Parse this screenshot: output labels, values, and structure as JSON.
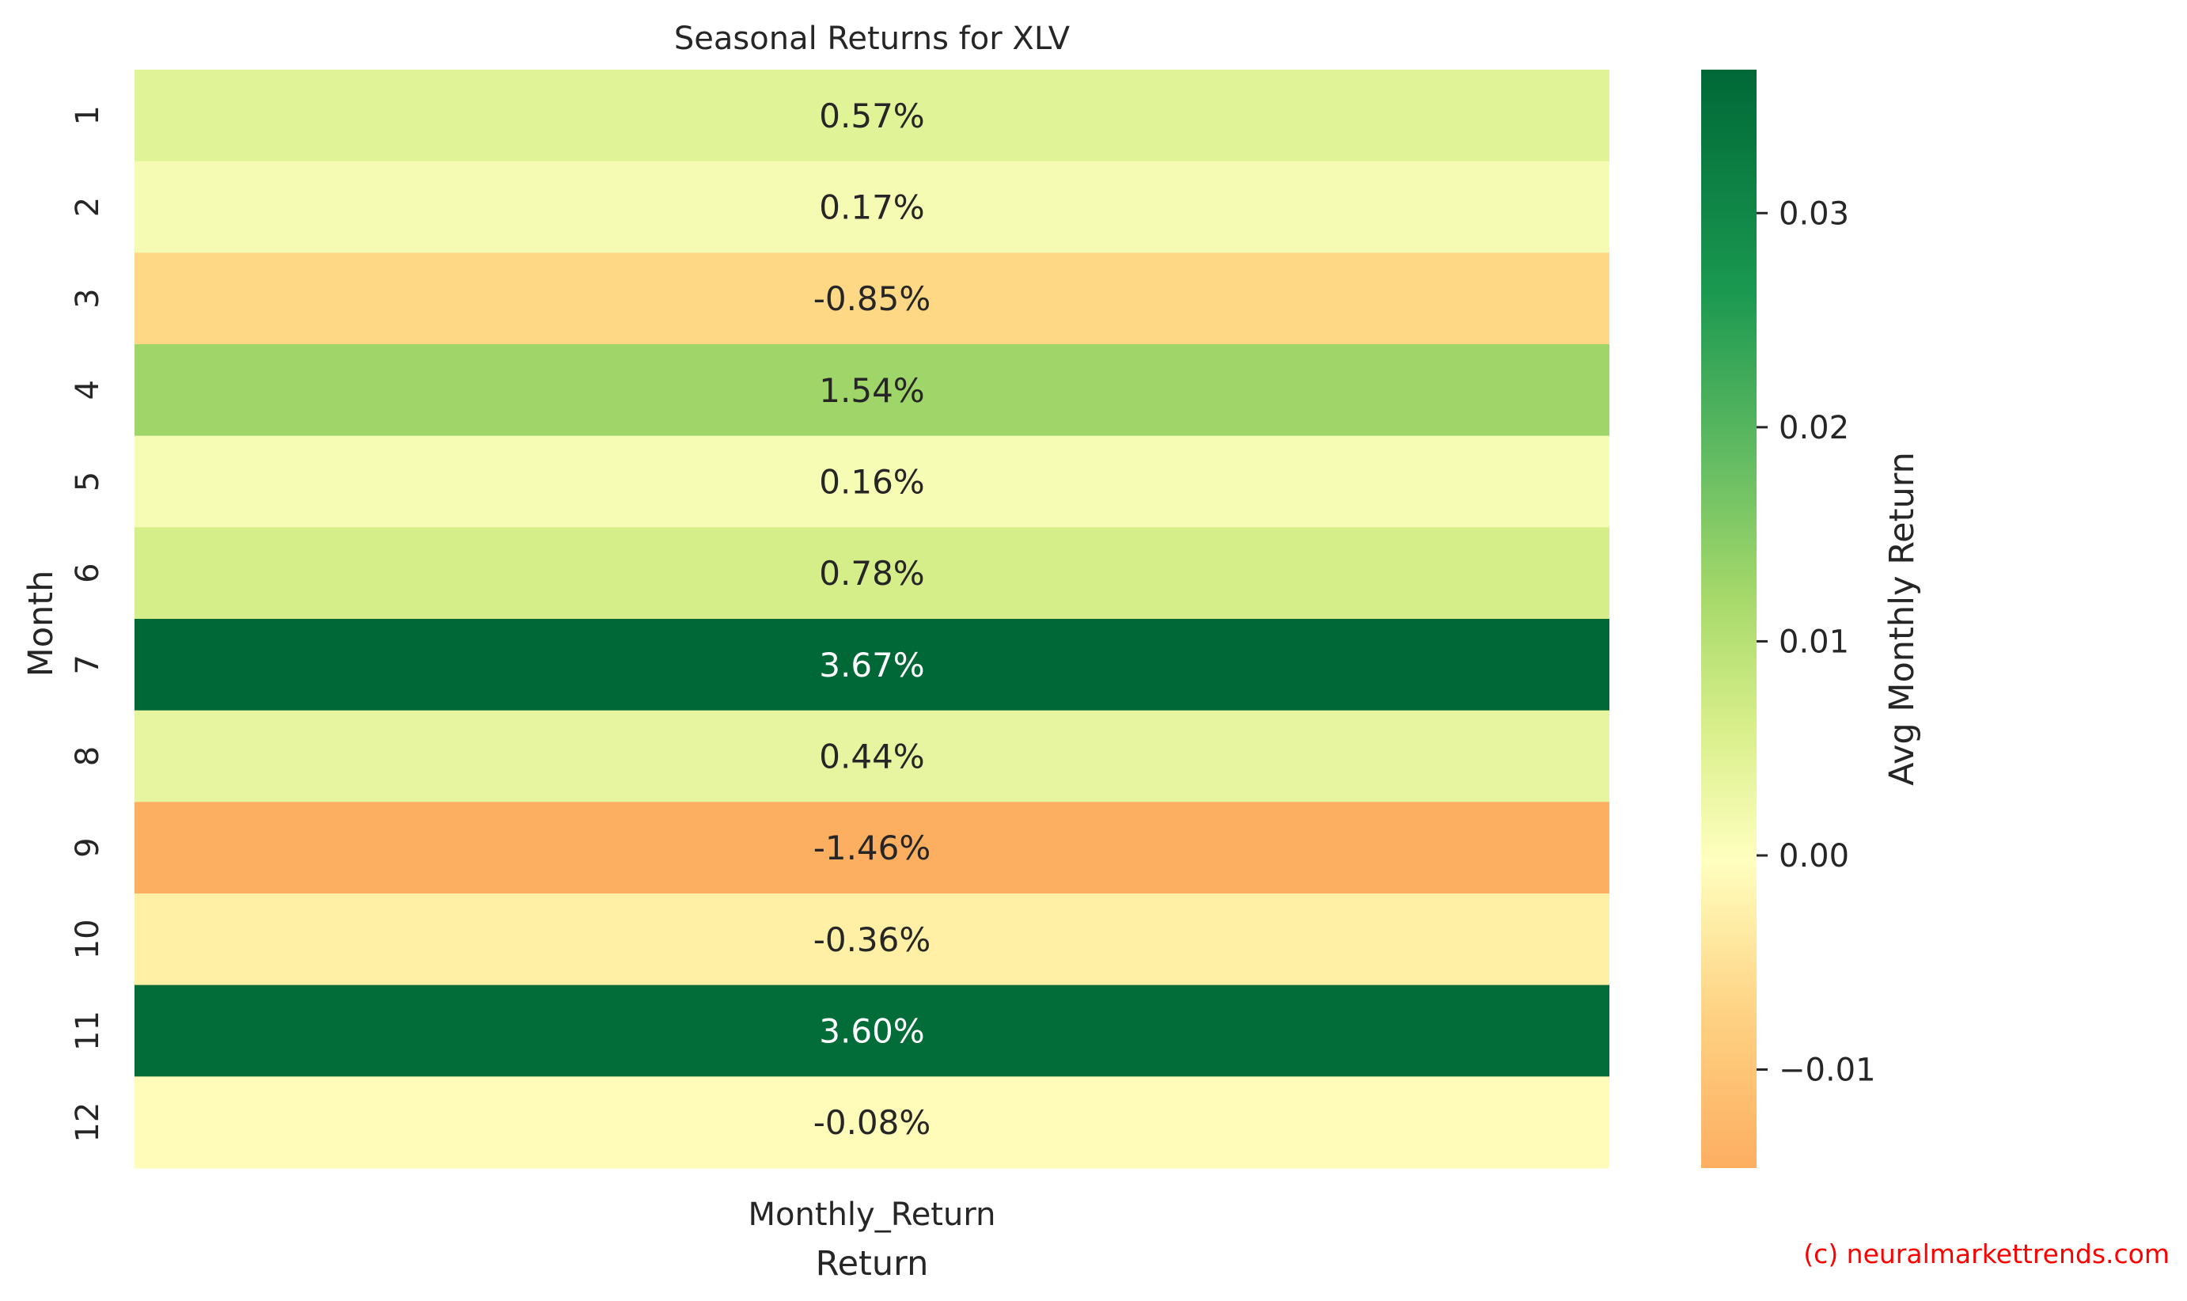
{
  "chart_data": {
    "type": "heatmap",
    "title": "Seasonal Returns for XLV",
    "xlabel": "Return",
    "ylabel": "Month",
    "columns": [
      "Monthly_Return"
    ],
    "rows": [
      "1",
      "2",
      "3",
      "4",
      "5",
      "6",
      "7",
      "8",
      "9",
      "10",
      "11",
      "12"
    ],
    "values": [
      0.0057,
      0.0017,
      -0.0085,
      0.0154,
      0.0016,
      0.0078,
      0.0367,
      0.0044,
      -0.0146,
      -0.0036,
      0.036,
      -0.0008
    ],
    "cell_labels": [
      "0.57%",
      "0.17%",
      "-0.85%",
      "1.54%",
      "0.16%",
      "0.78%",
      "3.67%",
      "0.44%",
      "-1.46%",
      "-0.36%",
      "3.60%",
      "-0.08%"
    ],
    "colormap": "RdYlGn",
    "center": 0,
    "colorbar": {
      "label": "Avg Monthly Return",
      "range": [
        -0.0146,
        0.0367
      ],
      "ticks": [
        -0.01,
        0.0,
        0.01,
        0.02,
        0.03
      ],
      "tick_labels": [
        "−0.01",
        "0.00",
        "0.01",
        "0.02",
        "0.03"
      ]
    }
  },
  "credit": "(c) neuralmarkettrends.com"
}
